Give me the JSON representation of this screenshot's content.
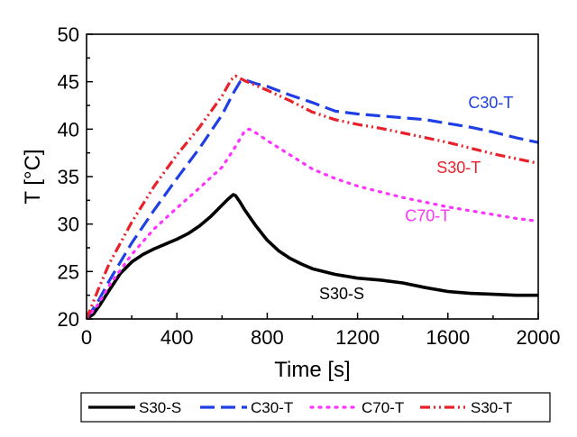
{
  "chart_data": {
    "type": "line",
    "xlabel": "Time [s]",
    "ylabel": "T [°C]",
    "xlim": [
      0,
      2000
    ],
    "ylim": [
      20,
      50
    ],
    "xticks": [
      0,
      400,
      800,
      1200,
      1600,
      2000
    ],
    "yticks": [
      20,
      25,
      30,
      35,
      40,
      45,
      50
    ],
    "grid": false,
    "legend": "bottom",
    "series": [
      {
        "name": "S30-S",
        "color": "#000000",
        "style": "solid",
        "x": [
          0,
          30,
          60,
          100,
          150,
          200,
          250,
          300,
          350,
          400,
          450,
          500,
          550,
          600,
          630,
          650,
          660,
          680,
          700,
          750,
          800,
          850,
          900,
          950,
          1000,
          1100,
          1200,
          1300,
          1400,
          1500,
          1600,
          1700,
          1800,
          1900,
          2000
        ],
        "y": [
          20,
          20.5,
          21.5,
          23,
          24.8,
          26,
          26.8,
          27.4,
          27.9,
          28.4,
          29,
          29.8,
          30.8,
          32,
          32.7,
          33.1,
          33,
          32.3,
          31.5,
          29.8,
          28.3,
          27.2,
          26.4,
          25.8,
          25.3,
          24.7,
          24.3,
          24.1,
          23.8,
          23.3,
          22.9,
          22.7,
          22.6,
          22.5,
          22.5
        ]
      },
      {
        "name": "C30-T",
        "color": "#1f3fe6",
        "style": "dashed",
        "x": [
          0,
          50,
          100,
          200,
          300,
          400,
          500,
          600,
          650,
          680,
          700,
          750,
          800,
          900,
          1000,
          1100,
          1200,
          1300,
          1400,
          1500,
          1600,
          1700,
          1800,
          1900,
          2000
        ],
        "y": [
          20,
          21.8,
          24,
          28,
          31.5,
          34.8,
          38,
          41.5,
          43.8,
          45,
          45.2,
          44.8,
          44.5,
          43.6,
          42.8,
          41.9,
          41.6,
          41.4,
          41.2,
          41,
          40.6,
          40.2,
          39.7,
          39.1,
          38.6
        ]
      },
      {
        "name": "C70-T",
        "color": "#ff33ff",
        "style": "dotted",
        "x": [
          0,
          50,
          100,
          200,
          300,
          400,
          500,
          600,
          650,
          700,
          720,
          750,
          800,
          900,
          1000,
          1100,
          1200,
          1300,
          1400,
          1500,
          1600,
          1700,
          1800,
          1900,
          2000
        ],
        "y": [
          20,
          21.5,
          23.5,
          26.8,
          29.5,
          31.7,
          33.8,
          36,
          37.8,
          39.8,
          40,
          39.6,
          38.8,
          37.3,
          35.8,
          34.8,
          34,
          33.4,
          32.8,
          32.3,
          31.8,
          31.4,
          31,
          30.6,
          30.3
        ]
      },
      {
        "name": "S30-T",
        "color": "#e8202a",
        "style": "dashdotdot",
        "x": [
          0,
          50,
          100,
          200,
          300,
          400,
          500,
          600,
          640,
          660,
          700,
          750,
          800,
          900,
          1000,
          1100,
          1200,
          1300,
          1400,
          1500,
          1600,
          1700,
          1800,
          1900,
          2000
        ],
        "y": [
          20,
          23,
          25.8,
          30.2,
          34,
          37.3,
          40.2,
          43.5,
          45.2,
          45.6,
          45.1,
          44.6,
          44.1,
          43,
          41.8,
          41,
          40.5,
          40.1,
          39.6,
          39.1,
          38.6,
          38,
          37.4,
          36.9,
          36.4
        ]
      }
    ],
    "annotations": [
      {
        "text": "C30-T",
        "x": 1690,
        "y": 42.2,
        "color": "#1f3fe6"
      },
      {
        "text": "S30-T",
        "x": 1550,
        "y": 35.4,
        "color": "#e8202a"
      },
      {
        "text": "C70-T",
        "x": 1410,
        "y": 30.3,
        "color": "#ff33ff"
      },
      {
        "text": "S30-S",
        "x": 1030,
        "y": 22.1,
        "color": "#000000"
      }
    ]
  }
}
